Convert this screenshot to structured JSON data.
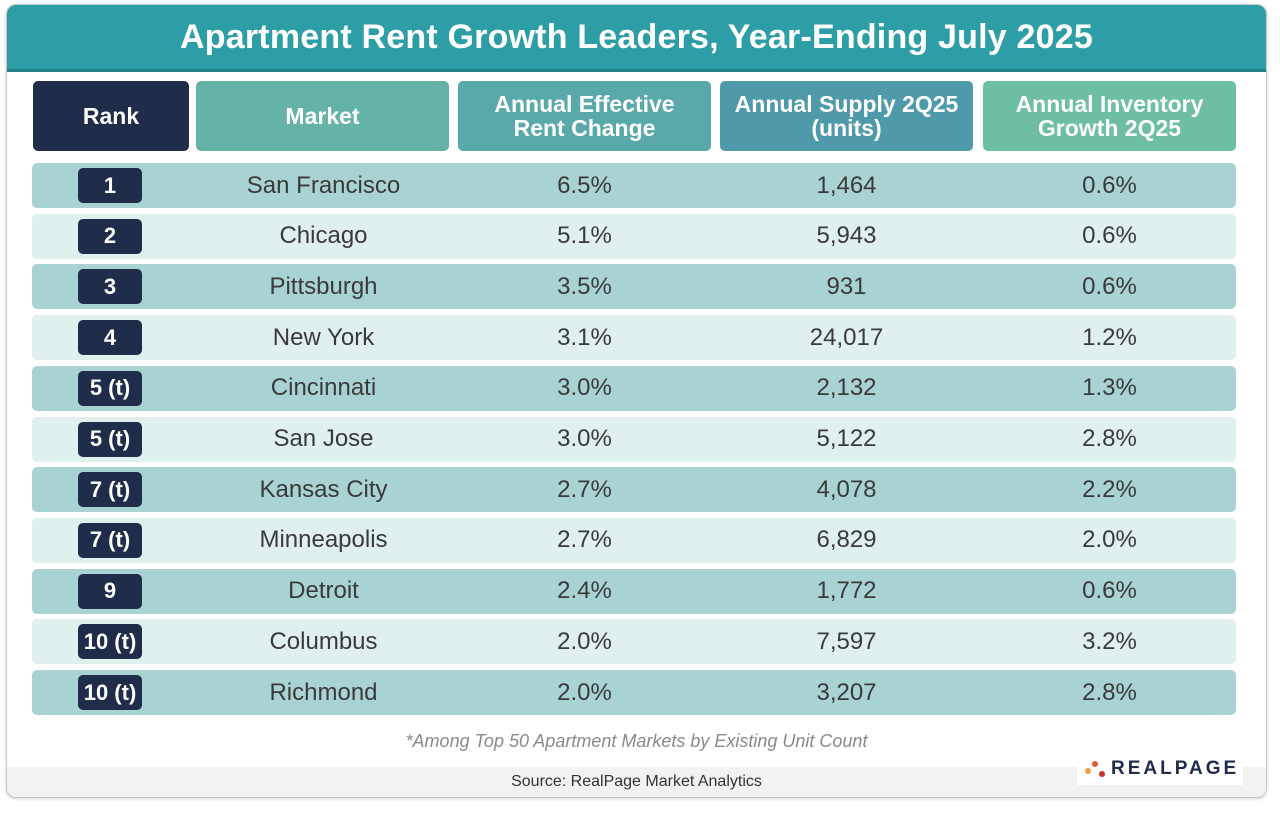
{
  "title": "Apartment Rent Growth Leaders, Year-Ending July 2025",
  "headers": {
    "rank": "Rank",
    "market": "Market",
    "rent_change": [
      "Annual Effective",
      "Rent Change"
    ],
    "supply": [
      "Annual Supply 2Q25",
      "(units)"
    ],
    "inventory": [
      "Annual Inventory",
      "Growth 2Q25"
    ]
  },
  "footnote": "*Among Top 50 Apartment Markets by Existing Unit Count",
  "source": "Source: RealPage Market Analytics",
  "logo": {
    "text": "REALPAGE",
    "colors": [
      "#e8a33d",
      "#e05a3a",
      "#c8332f"
    ]
  },
  "colors": {
    "banner": "#2e9ea6",
    "rank_dark": "#1f2d4a",
    "row_dark": "#a9d3d2",
    "row_light": "#dff0ef"
  },
  "chart_data": {
    "type": "table",
    "title": "Apartment Rent Growth Leaders, Year-Ending July 2025",
    "columns": [
      "Rank",
      "Market",
      "Annual Effective Rent Change",
      "Annual Supply 2Q25 (units)",
      "Annual Inventory Growth 2Q25"
    ],
    "rows": [
      {
        "rank": "1",
        "market": "San Francisco",
        "rent_change": "6.5%",
        "supply": "1,464",
        "inventory": "0.6%"
      },
      {
        "rank": "2",
        "market": "Chicago",
        "rent_change": "5.1%",
        "supply": "5,943",
        "inventory": "0.6%"
      },
      {
        "rank": "3",
        "market": "Pittsburgh",
        "rent_change": "3.5%",
        "supply": "931",
        "inventory": "0.6%"
      },
      {
        "rank": "4",
        "market": "New York",
        "rent_change": "3.1%",
        "supply": "24,017",
        "inventory": "1.2%"
      },
      {
        "rank": "5 (t)",
        "market": "Cincinnati",
        "rent_change": "3.0%",
        "supply": "2,132",
        "inventory": "1.3%"
      },
      {
        "rank": "5 (t)",
        "market": "San Jose",
        "rent_change": "3.0%",
        "supply": "5,122",
        "inventory": "2.8%"
      },
      {
        "rank": "7 (t)",
        "market": "Kansas City",
        "rent_change": "2.7%",
        "supply": "4,078",
        "inventory": "2.2%"
      },
      {
        "rank": "7 (t)",
        "market": "Minneapolis",
        "rent_change": "2.7%",
        "supply": "6,829",
        "inventory": "2.0%"
      },
      {
        "rank": "9",
        "market": "Detroit",
        "rent_change": "2.4%",
        "supply": "1,772",
        "inventory": "0.6%"
      },
      {
        "rank": "10 (t)",
        "market": "Columbus",
        "rent_change": "2.0%",
        "supply": "7,597",
        "inventory": "3.2%"
      },
      {
        "rank": "10 (t)",
        "market": "Richmond",
        "rent_change": "2.0%",
        "supply": "3,207",
        "inventory": "2.8%"
      }
    ]
  }
}
